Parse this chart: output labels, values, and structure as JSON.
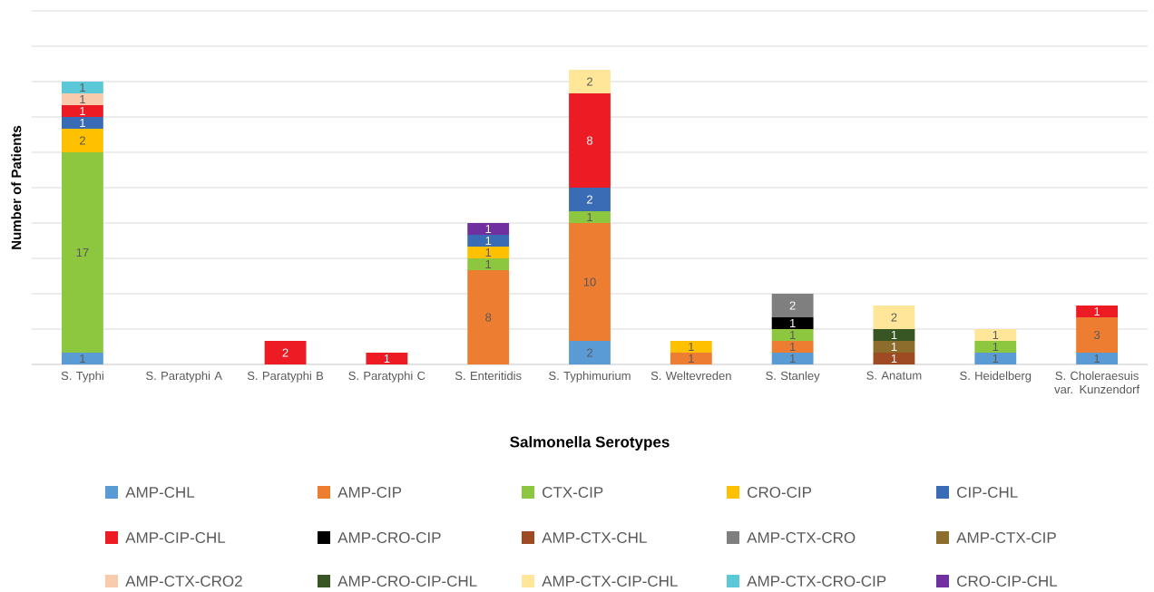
{
  "chart_data": {
    "type": "bar",
    "stacked": true,
    "data_labels": true,
    "grid": "y",
    "legend": "bottom",
    "tick_labels": "x",
    "xlabel": "Salmonella Serotypes",
    "ylabel": "Number of Patients",
    "categories": [
      "S. Typhi",
      "S. Paratyphi A",
      "S. Paratyphi B",
      "S. Paratyphi C",
      "S. Enteritidis",
      "S. Typhimurium",
      "S. Weltevreden",
      "S. Stanley",
      "S. Anatum",
      "S. Heidelberg",
      "S. Choleraesuis var. Kunzendorf"
    ],
    "ylim": [
      0,
      30
    ],
    "yticks": [
      {
        "value": 0,
        "label": null
      },
      {
        "value": 3,
        "label": null
      },
      {
        "value": 6,
        "label": null
      },
      {
        "value": 9,
        "label": null
      },
      {
        "value": 12,
        "label": null
      },
      {
        "value": 15,
        "label": null
      },
      {
        "value": 18,
        "label": null
      },
      {
        "value": 21,
        "label": null
      },
      {
        "value": 24,
        "label": null
      },
      {
        "value": 27,
        "label": null
      },
      {
        "value": 30,
        "label": null
      }
    ],
    "series": [
      {
        "name": "AMP-CHL",
        "color": "#5b9bd5",
        "values": [
          1,
          null,
          null,
          null,
          null,
          2,
          null,
          1,
          null,
          1,
          1
        ]
      },
      {
        "name": "AMP-CIP",
        "color": "#ed7d31",
        "values": [
          null,
          null,
          null,
          null,
          8,
          10,
          1,
          1,
          null,
          null,
          3
        ]
      },
      {
        "name": "CTX-CIP",
        "color": "#8dc63f",
        "values": [
          17,
          null,
          null,
          null,
          1,
          1,
          null,
          1,
          null,
          1,
          null
        ]
      },
      {
        "name": "CRO-CIP",
        "color": "#ffc000",
        "values": [
          2,
          null,
          null,
          null,
          1,
          null,
          1,
          null,
          null,
          null,
          null
        ]
      },
      {
        "name": "CIP-CHL",
        "color": "#3a6cb5",
        "values": [
          1,
          null,
          null,
          null,
          1,
          2,
          null,
          null,
          null,
          null,
          null
        ]
      },
      {
        "name": "AMP-CIP-CHL",
        "color": "#ed1c24",
        "values": [
          1,
          null,
          2,
          1,
          null,
          8,
          null,
          null,
          null,
          null,
          1
        ]
      },
      {
        "name": "AMP-CRO-CIP",
        "color": "#000000",
        "values": [
          null,
          null,
          null,
          null,
          null,
          null,
          null,
          1,
          null,
          null,
          null
        ]
      },
      {
        "name": "AMP-CTX-CHL",
        "color": "#9e4a23",
        "values": [
          null,
          null,
          null,
          null,
          null,
          null,
          null,
          null,
          1,
          null,
          null
        ]
      },
      {
        "name": "AMP-CTX-CRO",
        "color": "#7f7f7f",
        "values": [
          null,
          null,
          null,
          null,
          null,
          null,
          null,
          2,
          null,
          null,
          null
        ]
      },
      {
        "name": "AMP-CTX-CIP",
        "color": "#8c6d2c",
        "values": [
          null,
          null,
          null,
          null,
          null,
          null,
          null,
          null,
          1,
          null,
          null
        ]
      },
      {
        "name": "AMP-CTX-CRO2",
        "color": "#f8cbad",
        "values": [
          1,
          null,
          null,
          null,
          null,
          null,
          null,
          null,
          null,
          null,
          null
        ]
      },
      {
        "name": "AMP-CRO-CIP-CHL",
        "color": "#375623",
        "values": [
          null,
          null,
          null,
          null,
          null,
          null,
          null,
          null,
          1,
          null,
          null
        ]
      },
      {
        "name": "AMP-CTX-CIP-CHL",
        "color": "#ffe699",
        "values": [
          null,
          null,
          null,
          null,
          null,
          2,
          null,
          null,
          2,
          1,
          null
        ]
      },
      {
        "name": "AMP-CTX-CRO-CIP",
        "color": "#5bc8d8",
        "values": [
          1,
          null,
          null,
          null,
          null,
          null,
          null,
          null,
          null,
          null,
          null
        ]
      },
      {
        "name": "CRO-CIP-CHL",
        "color": "#7030a0",
        "values": [
          null,
          null,
          null,
          null,
          1,
          null,
          null,
          null,
          null,
          null,
          null
        ]
      }
    ]
  }
}
